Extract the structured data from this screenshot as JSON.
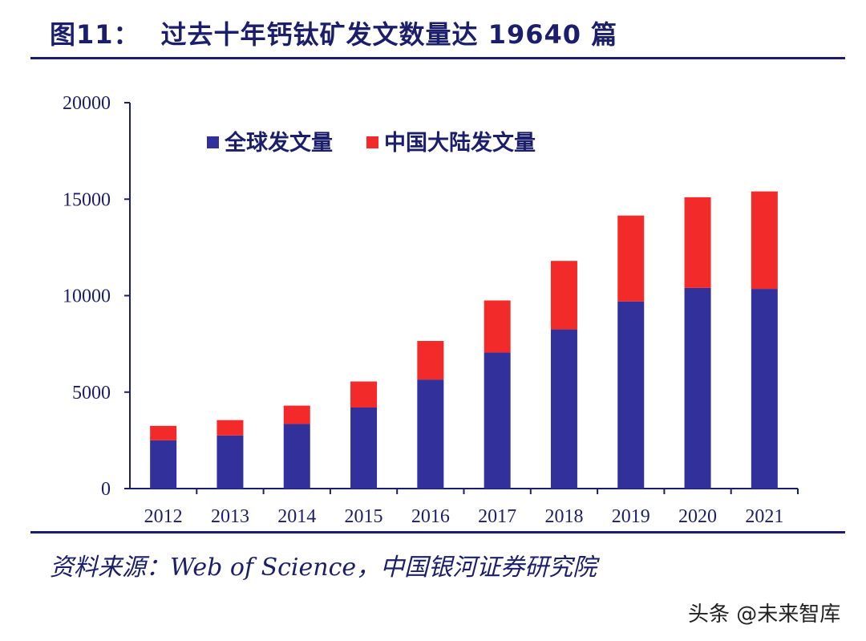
{
  "figure": {
    "label": "图11：",
    "title": "过去十年钙钛矿发文数量达 19640 篇"
  },
  "source": "资料来源：Web of Science，中国银河证券研究院",
  "watermark": "头条 @未来智库",
  "colors": {
    "global": "#32309a",
    "china": "#f22a2a",
    "axis": "#1b1f6b"
  },
  "chart_data": {
    "type": "bar",
    "stacked": true,
    "categories": [
      "2012",
      "2013",
      "2014",
      "2015",
      "2016",
      "2017",
      "2018",
      "2019",
      "2020",
      "2021"
    ],
    "series": [
      {
        "name": "全球发文量",
        "values": [
          2500,
          2750,
          3350,
          4200,
          5650,
          7050,
          8250,
          9700,
          10400,
          10350
        ]
      },
      {
        "name": "中国大陆发文量",
        "values": [
          750,
          800,
          950,
          1350,
          2000,
          2700,
          3550,
          4450,
          4700,
          5050
        ]
      }
    ],
    "y_ticks": [
      0,
      5000,
      10000,
      15000,
      20000
    ],
    "ylim": [
      0,
      20000
    ],
    "legend_position": "top-left",
    "title": "",
    "xlabel": "",
    "ylabel": ""
  }
}
